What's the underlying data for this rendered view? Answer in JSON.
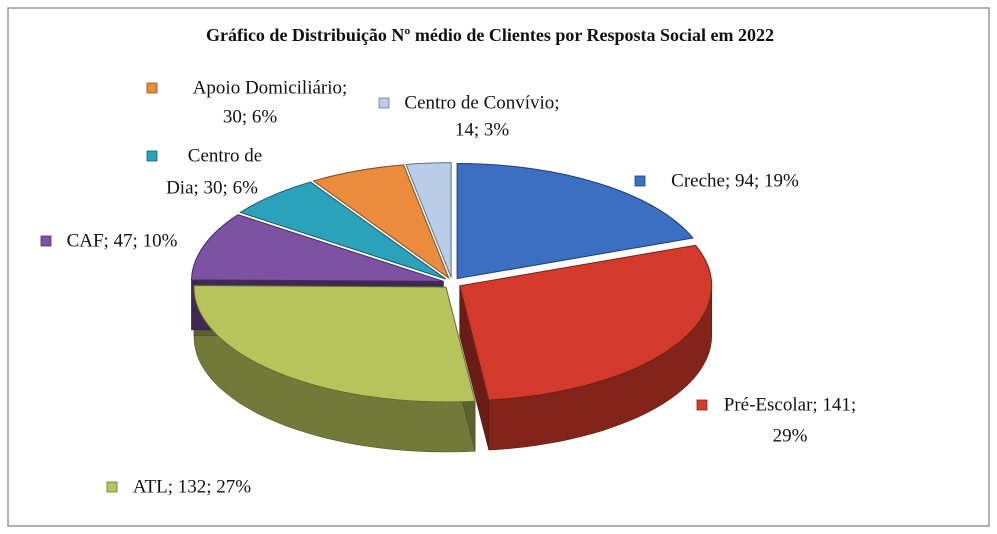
{
  "chart_data": {
    "type": "pie3d",
    "title": "Gráfico de Distribuição  Nº médio de Clientes por Resposta Social em 2022",
    "categories": [
      "Creche",
      "Pré-Escolar",
      "ATL",
      "CAF",
      "Centro de Dia",
      "Apoio Domiciliário",
      "Centro de Convívio"
    ],
    "values": [
      94,
      141,
      132,
      47,
      30,
      30,
      14
    ],
    "value_labels": [
      [
        "Creche; 94; 19%"
      ],
      [
        "Pré-Escolar; 141;",
        "29%"
      ],
      [
        "ATL; 132; 27%"
      ],
      [
        "CAF; 47; 10%"
      ],
      [
        "Centro de",
        "Dia; 30; 6%"
      ],
      [
        "Apoio Domiciliário;",
        "30; 6%"
      ],
      [
        "Centro de Convívio;",
        "14; 3%"
      ]
    ],
    "colors": [
      "#3a6fc4",
      "#d43a2c",
      "#b7c45c",
      "#7d52a3",
      "#2ba2b9",
      "#ea8c3c",
      "#b9cde9"
    ]
  }
}
